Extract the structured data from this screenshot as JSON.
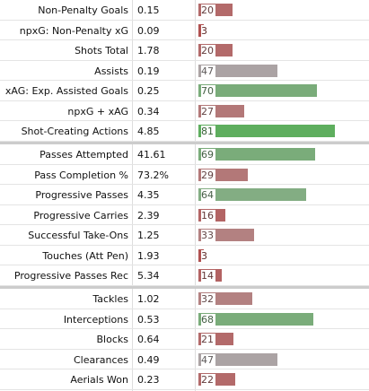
{
  "table": {
    "sections": [
      {
        "rows": [
          {
            "stat": "Non-Penalty Goals",
            "per90": "0.15",
            "percentile": 20,
            "color": "#b36a6a"
          },
          {
            "stat": "npxG: Non-Penalty xG",
            "per90": "0.09",
            "percentile": 3,
            "color": "#b0504f"
          },
          {
            "stat": "Shots Total",
            "per90": "1.78",
            "percentile": 20,
            "color": "#b36a6a"
          },
          {
            "stat": "Assists",
            "per90": "0.19",
            "percentile": 47,
            "color": "#aba3a4"
          },
          {
            "stat": "xAG: Exp. Assisted Goals",
            "per90": "0.25",
            "percentile": 70,
            "color": "#7aac7a"
          },
          {
            "stat": "npxG + xAG",
            "per90": "0.34",
            "percentile": 27,
            "color": "#b37878"
          },
          {
            "stat": "Shot-Creating Actions",
            "per90": "4.85",
            "percentile": 81,
            "color": "#5eae5e"
          }
        ]
      },
      {
        "rows": [
          {
            "stat": "Passes Attempted",
            "per90": "41.61",
            "percentile": 69,
            "color": "#7aac7a"
          },
          {
            "stat": "Pass Completion %",
            "per90": "73.2%",
            "percentile": 29,
            "color": "#b37878"
          },
          {
            "stat": "Progressive Passes",
            "per90": "4.35",
            "percentile": 64,
            "color": "#83ad83"
          },
          {
            "stat": "Progressive Carries",
            "per90": "2.39",
            "percentile": 16,
            "color": "#b36464"
          },
          {
            "stat": "Successful Take-Ons",
            "per90": "1.25",
            "percentile": 33,
            "color": "#b38181"
          },
          {
            "stat": "Touches (Att Pen)",
            "per90": "1.93",
            "percentile": 3,
            "color": "#b0504f"
          },
          {
            "stat": "Progressive Passes Rec",
            "per90": "5.34",
            "percentile": 14,
            "color": "#b36262"
          }
        ]
      },
      {
        "rows": [
          {
            "stat": "Tackles",
            "per90": "1.02",
            "percentile": 32,
            "color": "#b38181"
          },
          {
            "stat": "Interceptions",
            "per90": "0.53",
            "percentile": 68,
            "color": "#7aac7a"
          },
          {
            "stat": "Blocks",
            "per90": "0.64",
            "percentile": 21,
            "color": "#b36a6a"
          },
          {
            "stat": "Clearances",
            "per90": "0.49",
            "percentile": 47,
            "color": "#aba3a4"
          },
          {
            "stat": "Aerials Won",
            "per90": "0.23",
            "percentile": 22,
            "color": "#b36a6a"
          }
        ]
      }
    ]
  }
}
